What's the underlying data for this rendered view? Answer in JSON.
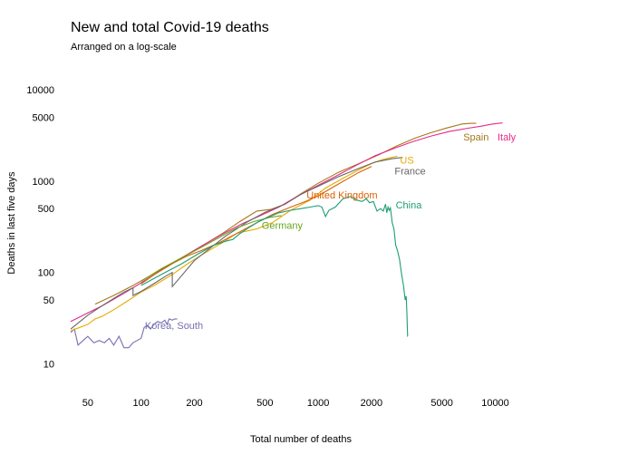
{
  "chart_data": {
    "type": "line",
    "title": "New and total Covid-19 deaths",
    "subtitle": "Arranged on a log-scale",
    "xlabel": "Total number of deaths",
    "ylabel": "Deaths in last five days",
    "x_scale": "log",
    "y_scale": "log",
    "xlim": [
      40,
      14000
    ],
    "ylim": [
      5.2,
      15500
    ],
    "x_ticks": [
      50,
      100,
      200,
      500,
      1000,
      2000,
      5000,
      10000
    ],
    "x_tick_labels": [
      "50",
      "100",
      "200",
      "500",
      "1000",
      "2000",
      "5000",
      "10000"
    ],
    "y_ticks": [
      10,
      50,
      100,
      500,
      1000,
      5000,
      10000
    ],
    "y_tick_labels": [
      "10",
      "50",
      "100",
      "500",
      "1000",
      "5000",
      "10000"
    ],
    "grid": false,
    "legend": "direct labels at series ends",
    "series": [
      {
        "name": "Korea, South",
        "color": "#7570b3",
        "x": [
          40,
          42,
          44,
          47,
          50,
          54,
          58,
          62,
          66,
          70,
          75,
          80,
          85,
          90,
          95,
          100,
          104,
          108,
          113,
          118,
          124,
          130,
          136,
          140,
          144,
          150,
          155,
          160
        ],
        "y": [
          22,
          24,
          16,
          18,
          20,
          17,
          18,
          17,
          19,
          16,
          20,
          15,
          15,
          17,
          18,
          19,
          25,
          26,
          24,
          27,
          29,
          28,
          30,
          27,
          31,
          30,
          31,
          31
        ],
        "label_x": 105,
        "label_y": 24
      },
      {
        "name": "US",
        "color": "#e6ab02",
        "x": [
          40,
          45,
          50,
          55,
          60,
          70,
          80,
          100,
          120,
          150,
          180,
          220,
          280,
          350,
          450,
          550,
          700,
          900,
          1100,
          1400,
          1700,
          2000,
          2300,
          2600,
          2800
        ],
        "y": [
          23,
          25,
          27,
          31,
          33,
          39,
          46,
          61,
          73,
          95,
          122,
          156,
          205,
          270,
          300,
          350,
          480,
          620,
          840,
          1090,
          1330,
          1560,
          1720,
          1820,
          1880
        ],
        "label_x": 2900,
        "label_y": 1550
      },
      {
        "name": "Spain",
        "color": "#a6761d",
        "x": [
          55,
          70,
          90,
          110,
          140,
          180,
          230,
          290,
          360,
          450,
          540,
          650,
          800,
          1000,
          1300,
          1700,
          2200,
          2800,
          3500,
          4300,
          5300,
          6500,
          7300,
          7800
        ],
        "y": [
          45,
          56,
          72,
          90,
          118,
          155,
          205,
          270,
          360,
          470,
          490,
          560,
          730,
          950,
          1250,
          1560,
          1950,
          2450,
          2950,
          3380,
          3820,
          4230,
          4300,
          4300
        ],
        "label_x": 6600,
        "label_y": 2800
      },
      {
        "name": "Italy",
        "color": "#e7298a",
        "x": [
          40,
          50,
          60,
          80,
          100,
          130,
          170,
          220,
          280,
          370,
          460,
          600,
          780,
          1000,
          1300,
          1650,
          2100,
          2700,
          3400,
          4300,
          5500,
          7000,
          8300,
          9500,
          11000
        ],
        "y": [
          29,
          36,
          43,
          59,
          77,
          106,
          145,
          195,
          255,
          340,
          410,
          520,
          700,
          900,
          1170,
          1500,
          1900,
          2300,
          2700,
          3100,
          3500,
          3800,
          4000,
          4200,
          4350
        ],
        "label_x": 10300,
        "label_y": 2800
      },
      {
        "name": "France",
        "color": "#666666",
        "x": [
          40,
          50,
          60,
          70,
          80,
          90,
          90,
          100,
          120,
          140,
          150,
          150,
          200,
          300,
          400,
          500,
          650,
          800,
          1000,
          1300,
          1700,
          2100,
          2600,
          3000
        ],
        "y": [
          24,
          34,
          43,
          52,
          61,
          68,
          56,
          62,
          77,
          93,
          100,
          70,
          135,
          250,
          360,
          455,
          560,
          720,
          880,
          1120,
          1380,
          1620,
          1760,
          1820
        ],
        "label_x": 2700,
        "label_y": 1180
      },
      {
        "name": "United Kingdom",
        "color": "#d95f02",
        "x": [
          100,
          120,
          150,
          180,
          220,
          280,
          350,
          450,
          550,
          700,
          850,
          1000,
          1200,
          1450,
          1700,
          2000
        ],
        "y": [
          75,
          96,
          125,
          150,
          175,
          215,
          270,
          350,
          430,
          520,
          600,
          690,
          850,
          1050,
          1250,
          1450
        ],
        "label_x": 860,
        "label_y": 650
      },
      {
        "name": "Germany",
        "color": "#66a61e",
        "x": [
          100,
          130,
          170,
          220,
          280,
          350,
          430,
          530,
          620
        ],
        "y": [
          80,
          110,
          145,
          190,
          245,
          310,
          360,
          400,
          420
        ],
        "label_x": 480,
        "label_y": 300
      },
      {
        "name": "China",
        "color": "#1b9e77",
        "x": [
          100,
          130,
          170,
          210,
          260,
          300,
          330,
          360,
          400,
          460,
          520,
          600,
          700,
          800,
          900,
          1000,
          1050,
          1100,
          1150,
          1250,
          1380,
          1520,
          1650,
          1770,
          1870,
          1950,
          2050,
          2150,
          2250,
          2330,
          2400,
          2440,
          2480,
          2520,
          2560,
          2620,
          2680,
          2740,
          2800,
          2880,
          2960,
          3040,
          3100,
          3140,
          3170,
          3190,
          3200,
          3210
        ],
        "y": [
          72,
          95,
          125,
          160,
          200,
          220,
          230,
          265,
          305,
          360,
          400,
          450,
          480,
          500,
          520,
          540,
          520,
          410,
          480,
          520,
          640,
          680,
          620,
          600,
          640,
          580,
          600,
          470,
          500,
          470,
          560,
          450,
          520,
          480,
          510,
          350,
          300,
          200,
          175,
          140,
          95,
          70,
          50,
          55,
          36,
          24,
          20,
          20
        ],
        "label_x": 2740,
        "label_y": 500
      }
    ]
  }
}
